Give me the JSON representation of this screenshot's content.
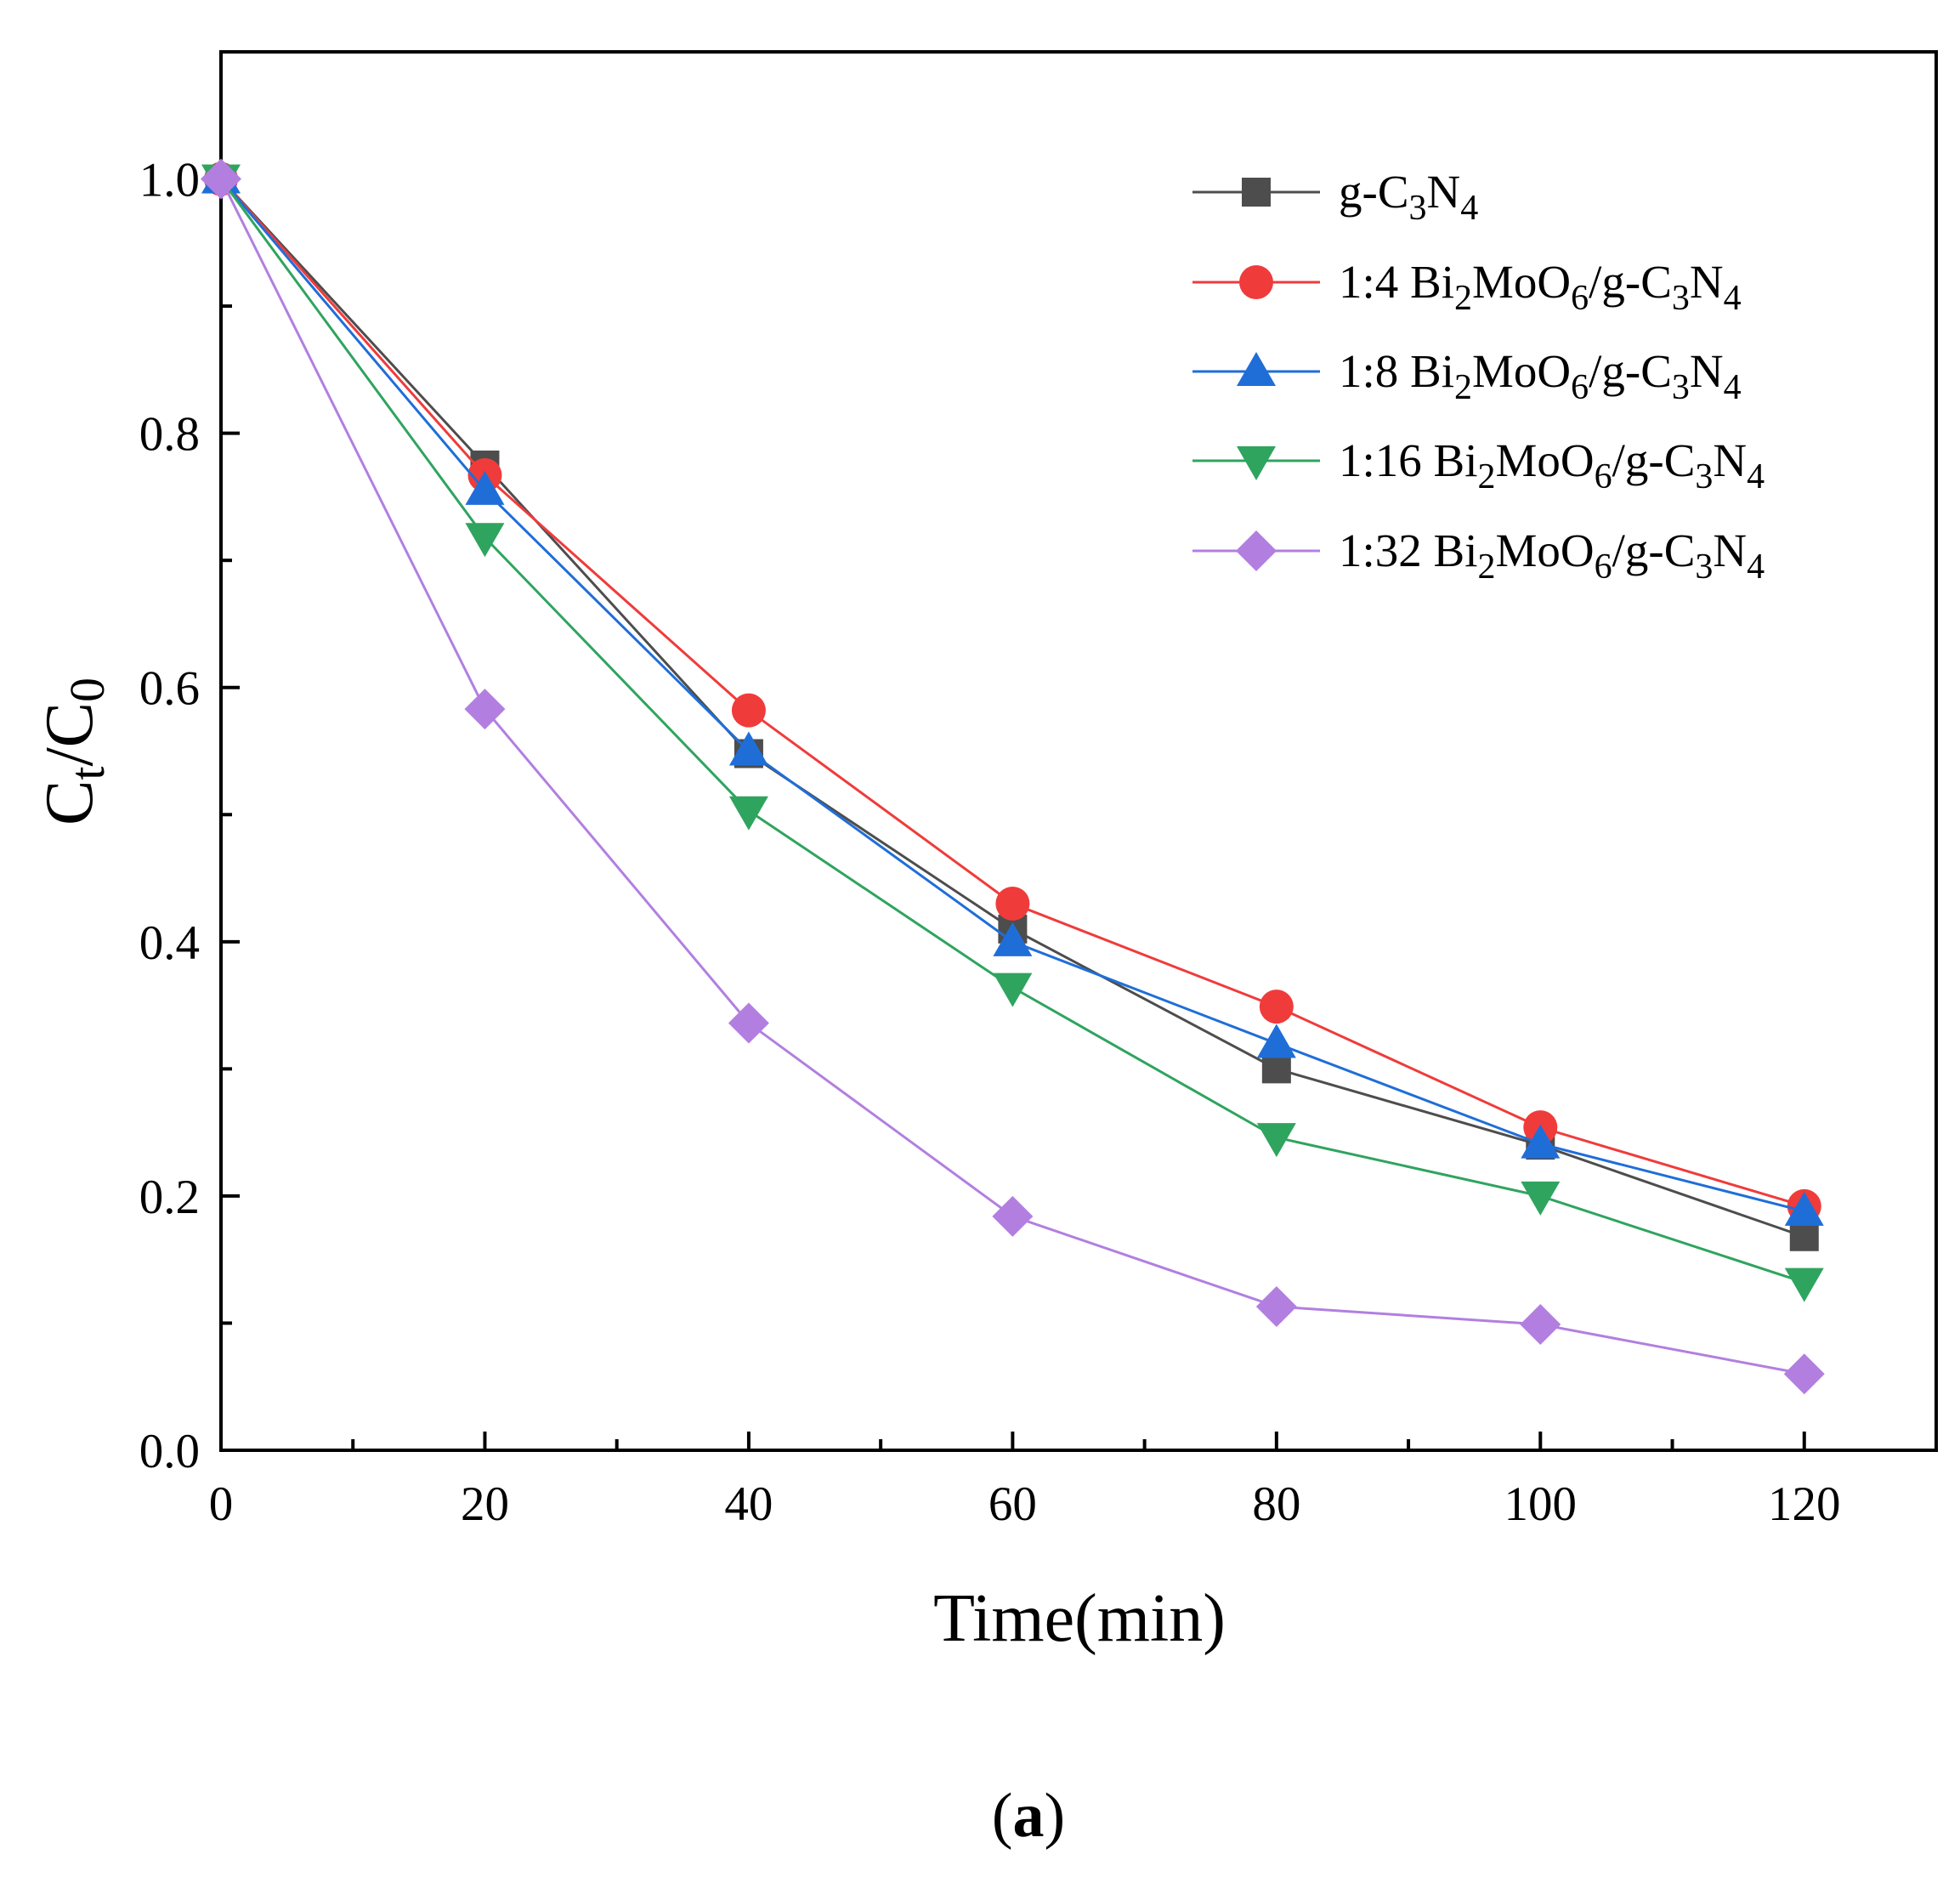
{
  "chart_data": {
    "type": "line",
    "x": [
      0,
      20,
      40,
      60,
      80,
      100,
      120
    ],
    "xlim": [
      0,
      130
    ],
    "ylim": [
      0,
      1.1
    ],
    "xticks": [
      "0",
      "20",
      "40",
      "60",
      "80",
      "100",
      "120"
    ],
    "yticks": [
      "0.0",
      "0.2",
      "0.4",
      "0.6",
      "0.8",
      "1.0"
    ],
    "xlabel": "Time(min)",
    "ylabel": {
      "main": "C",
      "sub1": "t",
      "mid": "/C",
      "sub2": "0"
    },
    "legend_position": "top-right",
    "panel_label": {
      "open": "(",
      "letter": "a",
      "close": ")"
    },
    "series": [
      {
        "name": "g-C3N4",
        "marker": "square",
        "color": "#4d4d4d",
        "label": {
          "prefix": "g-C",
          "s1": "3",
          "mid1": "N",
          "s2": "4"
        },
        "values": [
          1.0,
          0.775,
          0.548,
          0.41,
          0.3,
          0.24,
          0.168
        ]
      },
      {
        "name": "1:4 Bi2MoO6/g-C3N4",
        "marker": "circle",
        "color": "#f03b3b",
        "label": {
          "prefix": "1:4 Bi",
          "s1": "2",
          "mid1": "MoO",
          "s2": "6",
          "mid2": "/g-C",
          "s3": "3",
          "mid3": "N",
          "s4": "4"
        },
        "values": [
          1.0,
          0.767,
          0.582,
          0.43,
          0.349,
          0.254,
          0.192
        ]
      },
      {
        "name": "1:8 Bi2MoO6/g-C3N4",
        "marker": "triangle-up",
        "color": "#1f6ed8",
        "label": {
          "prefix": "1:8 Bi",
          "s1": "2",
          "mid1": "MoO",
          "s2": "6",
          "mid2": "/g-C",
          "s3": "3",
          "mid3": "N",
          "s4": "4"
        },
        "values": [
          1.0,
          0.755,
          0.55,
          0.4,
          0.32,
          0.241,
          0.188
        ]
      },
      {
        "name": "1:16 Bi2MoO6/g-C3N4",
        "marker": "triangle-down",
        "color": "#2fa45f",
        "label": {
          "prefix": "1:16 Bi",
          "s1": "2",
          "mid1": "MoO",
          "s2": "6",
          "mid2": "/g-C",
          "s3": "3",
          "mid3": "N",
          "s4": "4"
        },
        "values": [
          1.0,
          0.718,
          0.503,
          0.364,
          0.246,
          0.2,
          0.132
        ]
      },
      {
        "name": "1:32 Bi2MoO6/g-C3N4",
        "marker": "diamond",
        "color": "#b27fe0",
        "label": {
          "prefix": "1:32 Bi",
          "s1": "2",
          "mid1": "MoO",
          "s2": "6",
          "mid2": "/g-C",
          "s3": "3",
          "mid3": "N",
          "s4": "4"
        },
        "values": [
          1.0,
          0.583,
          0.336,
          0.184,
          0.113,
          0.099,
          0.06
        ]
      }
    ]
  }
}
